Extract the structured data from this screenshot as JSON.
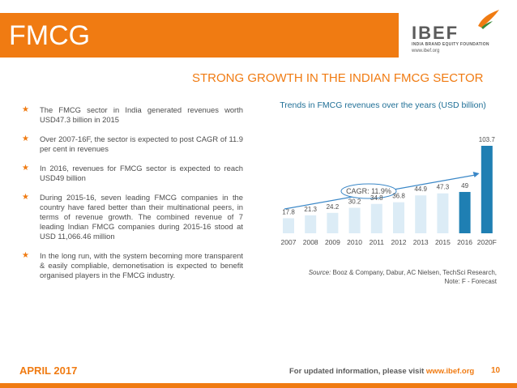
{
  "header": {
    "title": "FMCG"
  },
  "logo": {
    "name": "IBEF",
    "tagline": "INDIA BRAND EQUITY FOUNDATION",
    "url": "www.ibef.org"
  },
  "subtitle": "STRONG GROWTH IN THE INDIAN FMCG SECTOR",
  "bullets": [
    "The FMCG sector in India generated revenues worth USD47.3 billion in 2015",
    "Over 2007-16F, the sector is expected to post CAGR of 11.9 per cent in revenues",
    "In 2016, revenues for FMCG sector is expected to reach USD49 billion",
    "During 2015-16, seven leading FMCG companies in the country have fared better than their multinational peers, in terms of revenue growth. The combined revenue of 7 leading Indian FMCG companies during 2015-16 stood at USD 11,066.46 million",
    "In the long run, with the system becoming more transparent & easily compliable, demonetisation is expected to benefit organised players in the FMCG industry."
  ],
  "chart_data": {
    "type": "bar",
    "title": "Trends in FMCG revenues over the years (USD billion)",
    "categories": [
      "2007",
      "2008",
      "2009",
      "2010",
      "2011",
      "2012",
      "2013",
      "2015",
      "2016",
      "2020F"
    ],
    "values": [
      17.8,
      21.3,
      24.2,
      30.2,
      34.8,
      36.8,
      44.9,
      47.3,
      49,
      103.7
    ],
    "value_labels": [
      "17.8",
      "21.3",
      "24.2",
      "30.2",
      "34.8",
      "36.8",
      "44.9",
      "47.3",
      "49",
      "103.7"
    ],
    "annotation": "CAGR: 11.9%",
    "ylim": [
      0,
      103.7
    ],
    "grid": false,
    "colors": {
      "bar": "#dcecf6",
      "bar_highlight": "#1f7fb3",
      "arrow": "#3a87c7"
    },
    "highlight_indices": [
      8,
      9
    ]
  },
  "source": {
    "label": "Source:",
    "text": "Booz & Company, Dabur, AC Nielsen, TechSci Research,",
    "note": "Note: F - Forecast"
  },
  "footer": {
    "date": "APRIL 2017",
    "text": "For updated information, please visit ",
    "url": "www.ibef.org",
    "page": "10"
  },
  "colors": {
    "accent": "#f07b12",
    "chart_blue": "#1f6f96",
    "text": "#4d4d4d"
  }
}
